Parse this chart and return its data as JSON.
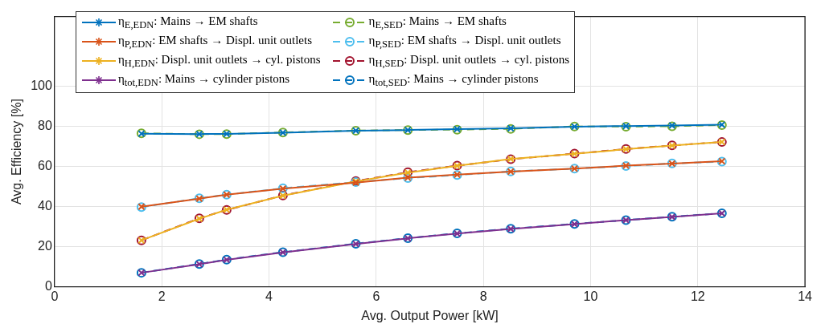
{
  "chart_data": {
    "type": "line",
    "xlabel": "Avg. Output Power [kW]",
    "ylabel": "Avg. Efficiency [%]",
    "x": [
      1.62,
      2.7,
      3.21,
      4.26,
      5.62,
      6.59,
      7.51,
      8.51,
      9.7,
      10.66,
      11.52,
      12.45
    ],
    "xlim": [
      0,
      14
    ],
    "xticks": [
      0,
      2,
      4,
      6,
      8,
      10,
      12,
      14
    ],
    "ylim": [
      0,
      135
    ],
    "yticks": [
      0,
      20,
      40,
      60,
      80,
      100
    ],
    "grid": true,
    "legend": "top",
    "series": [
      {
        "name": "η$_{E,EDN}$: Mains → EM shafts",
        "color": "#0072bd",
        "marker": "cross",
        "line_style": "solid",
        "values": [
          76.5,
          76.3,
          76.4,
          77,
          78,
          78.3,
          78.8,
          79.2,
          80,
          80.3,
          80.6,
          81
        ]
      },
      {
        "name": "η$_{P,EDN}$: EM shafts → Displ. unit outlets",
        "color": "#d95319",
        "marker": "cross",
        "line_style": "solid",
        "values": [
          40,
          44,
          46,
          49,
          52,
          54.5,
          56,
          57.5,
          59,
          60.5,
          61.5,
          62.7
        ]
      },
      {
        "name": "η$_{H,EDN}$: Displ. unit outlets → cyl. pistons",
        "color": "#edb120",
        "marker": "cross",
        "line_style": "solid",
        "values": [
          23.2,
          34,
          38.5,
          45.5,
          52.6,
          57,
          60.4,
          63.8,
          66.4,
          68.7,
          70.5,
          72.3
        ]
      },
      {
        "name": "η$_{tot,EDN}$: Mains → cylinder pistons",
        "color": "#7e2f8e",
        "marker": "cross",
        "line_style": "solid",
        "values": [
          7,
          11.3,
          13.5,
          17.2,
          21.4,
          24.2,
          26.6,
          28.9,
          31.3,
          33.3,
          34.9,
          36.7
        ]
      },
      {
        "name": "η$_{E,SED}$: Mains → EM shafts",
        "color": "#77ac30",
        "marker": "circle",
        "line_style": "dashed",
        "values": [
          76.7,
          76.2,
          76.3,
          77.1,
          78,
          78.3,
          78.5,
          78.9,
          80.1,
          80,
          80.2,
          80.8
        ]
      },
      {
        "name": "η$_{P,SED}$: EM shafts → Displ. unit outlets",
        "color": "#4dbeee",
        "marker": "circle",
        "line_style": "dashed",
        "values": [
          39.8,
          44.2,
          46,
          49.2,
          52.3,
          54.3,
          55.8,
          57.6,
          59,
          60.3,
          61.6,
          62.5
        ]
      },
      {
        "name": "η$_{H,SED}$: Displ. unit outlets → cyl. pistons",
        "color": "#a2142f",
        "marker": "circle",
        "line_style": "dashed",
        "values": [
          23.2,
          34.2,
          38.4,
          45.6,
          52.8,
          57.2,
          60.5,
          63.7,
          66.5,
          68.8,
          70.6,
          72.3
        ]
      },
      {
        "name": "η$_{tot,SED}$: Mains → cylinder pistons",
        "color": "#0072bd",
        "marker": "circle",
        "line_style": "dashed",
        "values": [
          7,
          11.4,
          13.6,
          17.3,
          21.5,
          24.3,
          26.7,
          29,
          31.4,
          33.3,
          35,
          36.7
        ]
      }
    ]
  }
}
